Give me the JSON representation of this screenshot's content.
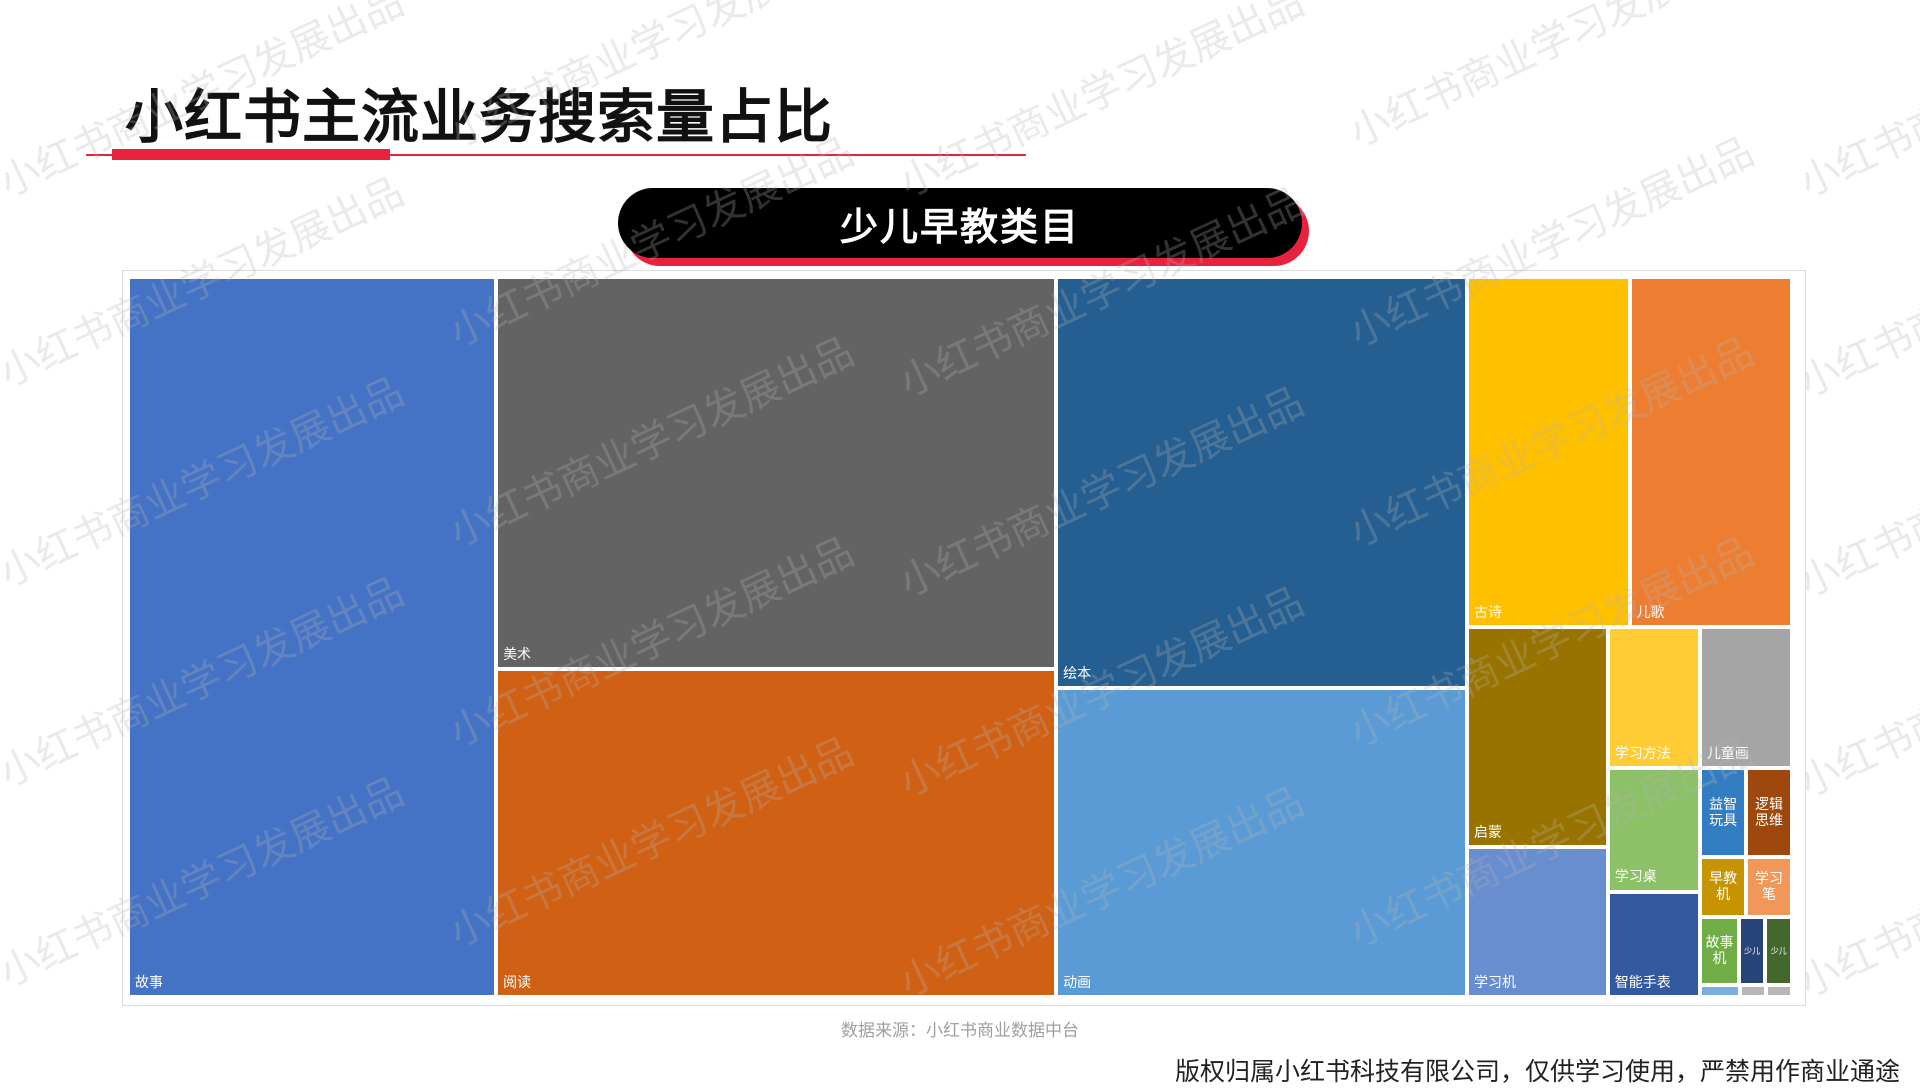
{
  "page_title": "小红书主流业务搜索量占比",
  "category_title": "少儿早教类目",
  "source_note": "数据来源：小红书商业数据中台",
  "copyright": "版权归属小红书科技有限公司，仅供学习使用，严禁用作商业通途",
  "watermark": [
    "小红书商业学习发展出品"
  ],
  "chart_data": {
    "type": "treemap",
    "unit": "search volume share (relative, estimated from tile areas)",
    "items": [
      {
        "name": "故事",
        "value": 163,
        "color": "#4472c4"
      },
      {
        "name": "美术",
        "value": 135,
        "color": "#636363"
      },
      {
        "name": "阅读",
        "value": 113,
        "color": "#d06014"
      },
      {
        "name": "绘本",
        "value": 104,
        "color": "#255e91"
      },
      {
        "name": "动画",
        "value": 78,
        "color": "#5b9bd5"
      },
      {
        "name": "古诗",
        "value": 35,
        "color": "#ffc000"
      },
      {
        "name": "儿歌",
        "value": 35,
        "color": "#ed7d31"
      },
      {
        "name": "启蒙",
        "value": 19,
        "color": "#997300"
      },
      {
        "name": "学习机",
        "value": 13,
        "color": "#698ed0"
      },
      {
        "name": "学习方法",
        "value": 8,
        "color": "#ffcd33"
      },
      {
        "name": "儿童画",
        "value": 8,
        "color": "#a5a5a5"
      },
      {
        "name": "学习桌",
        "value": 7,
        "color": "#8cc168"
      },
      {
        "name": "智能手表",
        "value": 6,
        "color": "#335aa1"
      },
      {
        "name": "益智玩具",
        "value": 2.5,
        "color": "#327dc2"
      },
      {
        "name": "逻辑思维",
        "value": 2.5,
        "color": "#9e480e"
      },
      {
        "name": "早教机",
        "value": 1.7,
        "color": "#c59400"
      },
      {
        "name": "学习笔",
        "value": 1.7,
        "color": "#f1975a"
      },
      {
        "name": "故事机",
        "value": 1.6,
        "color": "#70ad47"
      },
      {
        "name": "少儿",
        "value": 1.1,
        "color": "#264478"
      },
      {
        "name": "少儿",
        "value": 1.1,
        "color": "#43682b"
      },
      {
        "name": "",
        "value": 0.3,
        "color": "#7cafdd"
      },
      {
        "name": "",
        "value": 0.2,
        "color": "#b7b7b7"
      },
      {
        "name": "",
        "value": 0.2,
        "color": "#b7b7b7"
      }
    ]
  }
}
